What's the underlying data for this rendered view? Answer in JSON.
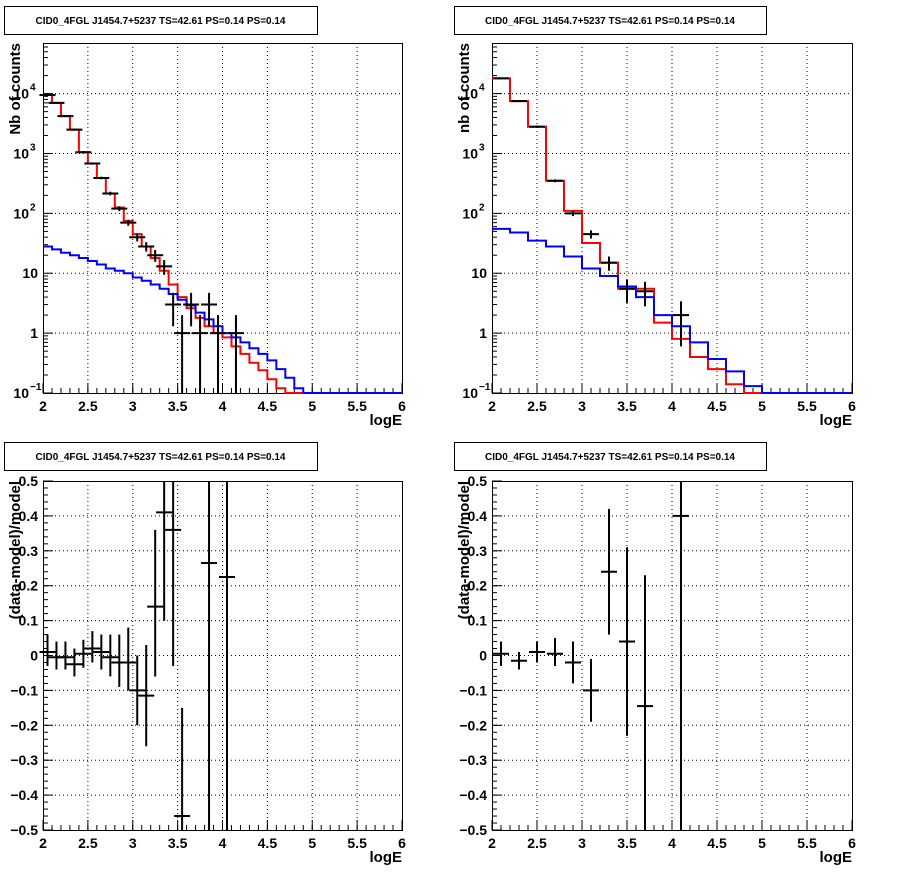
{
  "chart_data": [
    {
      "type": "line",
      "title": "CID0_4FGL J1454.7+5237 TS=42.61 PS=0.14 PS=0.14",
      "xlabel": "logE",
      "ylabel": "Nb of counts",
      "xlim": [
        2,
        6
      ],
      "ylim": [
        0.1,
        70000
      ],
      "log_y": true,
      "grid": true,
      "x_ticks": [
        "2",
        "2.5",
        "3",
        "3.5",
        "4",
        "4.5",
        "5",
        "5.5",
        "6"
      ],
      "y_ticks": [
        {
          "value": 0.1,
          "label": "10",
          "sup": "−1"
        },
        {
          "value": 1,
          "label": "1",
          "sup": ""
        },
        {
          "value": 10,
          "label": "10",
          "sup": ""
        },
        {
          "value": 100,
          "label": "10",
          "sup": "2"
        },
        {
          "value": 1000,
          "label": "10",
          "sup": "3"
        },
        {
          "value": 10000,
          "label": "10",
          "sup": "4"
        }
      ],
      "series": [
        {
          "kind": "step",
          "color": "#ff0000",
          "x0": 2,
          "dx": 0.1,
          "values": [
            9500,
            7000,
            4200,
            2500,
            1050,
            680,
            390,
            215,
            125,
            75,
            45,
            28,
            18,
            11,
            6.5,
            4,
            2.6,
            1.8,
            1.3,
            1.0,
            0.85,
            0.6,
            0.45,
            0.32,
            0.24,
            0.17,
            0.12,
            0.1,
            0.1,
            0.1,
            0.1,
            0.1,
            0.1,
            0.1,
            0.1,
            0.1,
            0.1,
            0.1,
            0.1,
            0.1
          ]
        },
        {
          "kind": "step",
          "color": "#0000ff",
          "x0": 2,
          "dx": 0.1,
          "values": [
            28,
            25,
            22,
            20,
            18,
            16,
            14,
            12,
            11,
            10,
            8.5,
            7.5,
            6.5,
            5.5,
            4.5,
            3.6,
            2.9,
            2.2,
            1.7,
            1.3,
            1.0,
            0.85,
            0.7,
            0.56,
            0.45,
            0.35,
            0.25,
            0.18,
            0.12,
            0.1,
            0.1,
            0.1,
            0.1,
            0.1,
            0.1,
            0.1,
            0.1,
            0.1,
            0.1,
            0.1
          ]
        },
        {
          "kind": "points",
          "color": "#000000",
          "points": [
            {
              "x": 2.05,
              "y": 9500,
              "lo": 9300,
              "hi": 9700
            },
            {
              "x": 2.15,
              "y": 7000,
              "lo": 6850,
              "hi": 7150
            },
            {
              "x": 2.25,
              "y": 4200,
              "lo": 4080,
              "hi": 4320
            },
            {
              "x": 2.35,
              "y": 2500,
              "lo": 2400,
              "hi": 2600
            },
            {
              "x": 2.45,
              "y": 1050,
              "lo": 1000,
              "hi": 1100
            },
            {
              "x": 2.55,
              "y": 680,
              "lo": 650,
              "hi": 710
            },
            {
              "x": 2.65,
              "y": 390,
              "lo": 370,
              "hi": 410
            },
            {
              "x": 2.75,
              "y": 215,
              "lo": 200,
              "hi": 230
            },
            {
              "x": 2.85,
              "y": 120,
              "lo": 109,
              "hi": 131
            },
            {
              "x": 2.95,
              "y": 70,
              "lo": 62,
              "hi": 78
            },
            {
              "x": 3.05,
              "y": 40,
              "lo": 34,
              "hi": 46
            },
            {
              "x": 3.15,
              "y": 28,
              "lo": 23,
              "hi": 33
            },
            {
              "x": 3.25,
              "y": 20,
              "lo": 15.5,
              "hi": 24.5
            },
            {
              "x": 3.35,
              "y": 13,
              "lo": 9.4,
              "hi": 16.6
            },
            {
              "x": 3.45,
              "y": 3,
              "lo": 1.3,
              "hi": 4.7
            },
            {
              "x": 3.55,
              "y": 1,
              "lo": 0.1,
              "hi": 2
            },
            {
              "x": 3.65,
              "y": 3,
              "lo": 1.3,
              "hi": 4.7
            },
            {
              "x": 3.75,
              "y": 1,
              "lo": 0.1,
              "hi": 2
            },
            {
              "x": 3.85,
              "y": 3,
              "lo": 1.3,
              "hi": 4.7
            },
            {
              "x": 3.95,
              "y": 1,
              "lo": 0.1,
              "hi": 2
            },
            {
              "x": 4.15,
              "y": 1,
              "lo": 0.1,
              "hi": 2
            }
          ]
        }
      ]
    },
    {
      "type": "line",
      "title": "CID0_4FGL J1454.7+5237 TS=42.61 PS=0.14 PS=0.14",
      "xlabel": "logE",
      "ylabel": "nb of counts",
      "xlim": [
        2,
        6
      ],
      "ylim": [
        0.1,
        70000
      ],
      "log_y": true,
      "grid": true,
      "x_ticks": [
        "2",
        "2.5",
        "3",
        "3.5",
        "4",
        "4.5",
        "5",
        "5.5",
        "6"
      ],
      "y_ticks": [
        {
          "value": 0.1,
          "label": "10",
          "sup": "−1"
        },
        {
          "value": 1,
          "label": "1",
          "sup": ""
        },
        {
          "value": 10,
          "label": "10",
          "sup": ""
        },
        {
          "value": 100,
          "label": "10",
          "sup": "2"
        },
        {
          "value": 1000,
          "label": "10",
          "sup": "3"
        },
        {
          "value": 10000,
          "label": "10",
          "sup": "4"
        }
      ],
      "series": [
        {
          "kind": "step",
          "color": "#ff0000",
          "x0": 2,
          "dx": 0.2,
          "values": [
            18000,
            7500,
            2800,
            350,
            110,
            32,
            15,
            5.5,
            5.5,
            1.5,
            0.8,
            0.4,
            0.25,
            0.14,
            0.1,
            0.1,
            0.1,
            0.1,
            0.1,
            0.1
          ]
        },
        {
          "kind": "step",
          "color": "#0000ff",
          "x0": 2,
          "dx": 0.2,
          "values": [
            55,
            48,
            35,
            28,
            19,
            12,
            9,
            6,
            4,
            2,
            1.3,
            0.7,
            0.37,
            0.23,
            0.13,
            0.1,
            0.1,
            0.1,
            0.1,
            0.1
          ]
        },
        {
          "kind": "points",
          "color": "#000000",
          "points": [
            {
              "x": 2.1,
              "y": 18000,
              "lo": 17700,
              "hi": 18300
            },
            {
              "x": 2.3,
              "y": 7500,
              "lo": 7300,
              "hi": 7700
            },
            {
              "x": 2.5,
              "y": 2800,
              "lo": 2690,
              "hi": 2910
            },
            {
              "x": 2.7,
              "y": 350,
              "lo": 331,
              "hi": 369
            },
            {
              "x": 2.9,
              "y": 100,
              "lo": 90,
              "hi": 110
            },
            {
              "x": 3.1,
              "y": 45,
              "lo": 38,
              "hi": 52
            },
            {
              "x": 3.3,
              "y": 15,
              "lo": 11,
              "hi": 19
            },
            {
              "x": 3.5,
              "y": 5.5,
              "lo": 3.2,
              "hi": 7.8
            },
            {
              "x": 3.7,
              "y": 5,
              "lo": 2.8,
              "hi": 7.2
            },
            {
              "x": 4.1,
              "y": 2,
              "lo": 0.6,
              "hi": 3.4
            }
          ]
        }
      ]
    },
    {
      "type": "scatter",
      "title": "CID0_4FGL J1454.7+5237 TS=42.61 PS=0.14 PS=0.14",
      "xlabel": "logE",
      "ylabel": "(data-model)/model",
      "xlim": [
        2,
        6
      ],
      "ylim": [
        -0.5,
        0.5
      ],
      "log_y": false,
      "grid": true,
      "x_ticks": [
        "2",
        "2.5",
        "3",
        "3.5",
        "4",
        "4.5",
        "5",
        "5.5",
        "6"
      ],
      "y_ticks": [
        {
          "value": -0.5,
          "label": "−0.5",
          "sup": ""
        },
        {
          "value": -0.4,
          "label": "−0.4",
          "sup": ""
        },
        {
          "value": -0.3,
          "label": "−0.3",
          "sup": ""
        },
        {
          "value": -0.2,
          "label": "−0.2",
          "sup": ""
        },
        {
          "value": -0.1,
          "label": "−0.1",
          "sup": ""
        },
        {
          "value": 0,
          "label": "0",
          "sup": ""
        },
        {
          "value": 0.1,
          "label": "0.1",
          "sup": ""
        },
        {
          "value": 0.2,
          "label": "0.2",
          "sup": ""
        },
        {
          "value": 0.3,
          "label": "0.3",
          "sup": ""
        },
        {
          "value": 0.4,
          "label": "0.4",
          "sup": ""
        },
        {
          "value": 0.5,
          "label": "0.5",
          "sup": ""
        }
      ],
      "series": [
        {
          "kind": "points",
          "color": "#000000",
          "points": [
            {
              "x": 2.05,
              "y": 0.01,
              "lo": -0.03,
              "hi": 0.06
            },
            {
              "x": 2.15,
              "y": -0.005,
              "lo": -0.04,
              "hi": 0.04
            },
            {
              "x": 2.25,
              "y": -0.005,
              "lo": -0.04,
              "hi": 0.04
            },
            {
              "x": 2.35,
              "y": -0.025,
              "lo": -0.06,
              "hi": 0.02
            },
            {
              "x": 2.45,
              "y": 0.005,
              "lo": -0.035,
              "hi": 0.045
            },
            {
              "x": 2.55,
              "y": 0.02,
              "lo": -0.02,
              "hi": 0.07
            },
            {
              "x": 2.65,
              "y": 0.01,
              "lo": -0.04,
              "hi": 0.06
            },
            {
              "x": 2.75,
              "y": -0.005,
              "lo": -0.06,
              "hi": 0.06
            },
            {
              "x": 2.85,
              "y": -0.02,
              "lo": -0.09,
              "hi": 0.06
            },
            {
              "x": 2.95,
              "y": -0.02,
              "lo": -0.1,
              "hi": 0.08
            },
            {
              "x": 3.05,
              "y": -0.1,
              "lo": -0.2,
              "hi": 0.0
            },
            {
              "x": 3.15,
              "y": -0.115,
              "lo": -0.26,
              "hi": 0.03
            },
            {
              "x": 3.25,
              "y": 0.14,
              "lo": -0.06,
              "hi": 0.36
            },
            {
              "x": 3.35,
              "y": 0.41,
              "lo": 0.1,
              "hi": 0.5
            },
            {
              "x": 3.45,
              "y": 0.36,
              "lo": -0.03,
              "hi": 0.5
            },
            {
              "x": 3.55,
              "y": -0.46,
              "lo": -0.5,
              "hi": -0.15
            },
            {
              "x": 3.85,
              "y": 0.265,
              "lo": -0.5,
              "hi": 0.5
            },
            {
              "x": 4.05,
              "y": 0.225,
              "lo": -0.5,
              "hi": 0.5
            }
          ]
        }
      ]
    },
    {
      "type": "scatter",
      "title": "CID0_4FGL J1454.7+5237 TS=42.61 PS=0.14 PS=0.14",
      "xlabel": "logE",
      "ylabel": "(data-model)/model",
      "xlim": [
        2,
        6
      ],
      "ylim": [
        -0.5,
        0.5
      ],
      "log_y": false,
      "grid": true,
      "x_ticks": [
        "2",
        "2.5",
        "3",
        "3.5",
        "4",
        "4.5",
        "5",
        "5.5",
        "6"
      ],
      "y_ticks": [
        {
          "value": -0.5,
          "label": "−0.5",
          "sup": ""
        },
        {
          "value": -0.4,
          "label": "−0.4",
          "sup": ""
        },
        {
          "value": -0.3,
          "label": "−0.3",
          "sup": ""
        },
        {
          "value": -0.2,
          "label": "−0.2",
          "sup": ""
        },
        {
          "value": -0.1,
          "label": "−0.1",
          "sup": ""
        },
        {
          "value": 0,
          "label": "0",
          "sup": ""
        },
        {
          "value": 0.1,
          "label": "0.1",
          "sup": ""
        },
        {
          "value": 0.2,
          "label": "0.2",
          "sup": ""
        },
        {
          "value": 0.3,
          "label": "0.3",
          "sup": ""
        },
        {
          "value": 0.4,
          "label": "0.4",
          "sup": ""
        },
        {
          "value": 0.5,
          "label": "0.5",
          "sup": ""
        }
      ],
      "series": [
        {
          "kind": "points",
          "color": "#000000",
          "points": [
            {
              "x": 2.1,
              "y": 0.005,
              "lo": -0.03,
              "hi": 0.04
            },
            {
              "x": 2.3,
              "y": -0.015,
              "lo": -0.04,
              "hi": 0.01
            },
            {
              "x": 2.5,
              "y": 0.01,
              "lo": -0.02,
              "hi": 0.04
            },
            {
              "x": 2.7,
              "y": 0.005,
              "lo": -0.03,
              "hi": 0.05
            },
            {
              "x": 2.9,
              "y": -0.02,
              "lo": -0.08,
              "hi": 0.04
            },
            {
              "x": 3.1,
              "y": -0.1,
              "lo": -0.19,
              "hi": -0.01
            },
            {
              "x": 3.3,
              "y": 0.24,
              "lo": 0.06,
              "hi": 0.42
            },
            {
              "x": 3.5,
              "y": 0.04,
              "lo": -0.23,
              "hi": 0.31
            },
            {
              "x": 3.7,
              "y": -0.145,
              "lo": -0.5,
              "hi": 0.23
            },
            {
              "x": 4.1,
              "y": 0.4,
              "lo": -0.5,
              "hi": 0.5
            }
          ]
        }
      ]
    }
  ]
}
